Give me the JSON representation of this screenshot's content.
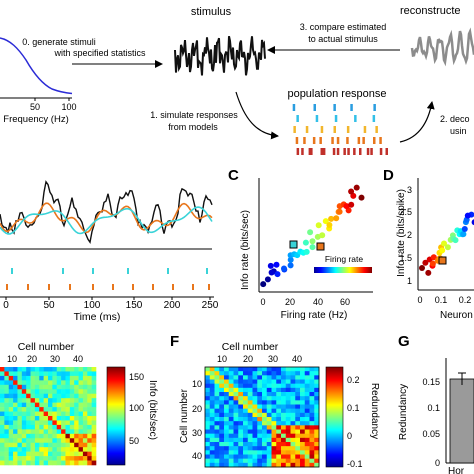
{
  "top": {
    "stimulus_title": "stimulus",
    "reconstructed_title": "reconstructe",
    "step0_line1": "0. generate stimuli",
    "step0_line2": "with specified statistics",
    "step3_line1": "3. compare estimated",
    "step3_line2": "to actual stimulus",
    "step1_line1": "1. simulate responses",
    "step1_line2": "from models",
    "step2_line1": "2. deco",
    "step2_line2": "usin",
    "population_title": "population response",
    "spectrum_xlabel": "Frequency (Hz)",
    "spectrum_ticks": [
      "50",
      "100"
    ]
  },
  "panelB": {
    "xlabel": "Time (ms)",
    "xticks": [
      "0",
      "50",
      "100",
      "150",
      "200",
      "250"
    ]
  },
  "panelC": {
    "letter": "C",
    "title_label": "Firing rate",
    "xlabel": "Firing rate (Hz)",
    "ylabel": "Info rate (bits/sec)",
    "xticks": [
      "0",
      "20",
      "40",
      "60"
    ],
    "yticks": [
      "0",
      "200",
      "400",
      "600",
      "800"
    ]
  },
  "panelD": {
    "letter": "D",
    "xlabel": "Neuron",
    "ylabel": "Info rate (bits/spike)",
    "xticks": [
      "0",
      "0.1",
      "0.2"
    ],
    "yticks": [
      "1",
      "1.5",
      "2",
      "2.5",
      "3"
    ]
  },
  "panelE": {
    "xlabel_top": "Cell number",
    "xticks": [
      "10",
      "20",
      "30",
      "40"
    ],
    "cbar_label": "Info (bits/sec)",
    "cbar_ticks": [
      "150",
      "100",
      "50"
    ]
  },
  "panelF": {
    "letter": "F",
    "xlabel_top": "Cell number",
    "ylabel": "Cell number",
    "xticks": [
      "10",
      "20",
      "30",
      "40"
    ],
    "yticks": [
      "10",
      "20",
      "30",
      "40"
    ],
    "cbar_label": "Redundancy",
    "cbar_ticks": [
      "0.2",
      "0.1",
      "0",
      "-0.1"
    ]
  },
  "panelG": {
    "letter": "G",
    "ylabel": "Redundancy",
    "yticks": [
      "0.15",
      "0.1",
      "0.05",
      "0"
    ],
    "xlabel": "Hor"
  },
  "colors": {
    "spectrum": "#2b2bd6",
    "stimulus": "#111111",
    "reconstruction": "#8c8c8c",
    "orange": "#e8761c",
    "cyan": "#3ad3d8",
    "raster_rows": [
      "#2a9de0",
      "#33c0e8",
      "#f2b62c",
      "#e8761c",
      "#c0302a"
    ]
  }
}
